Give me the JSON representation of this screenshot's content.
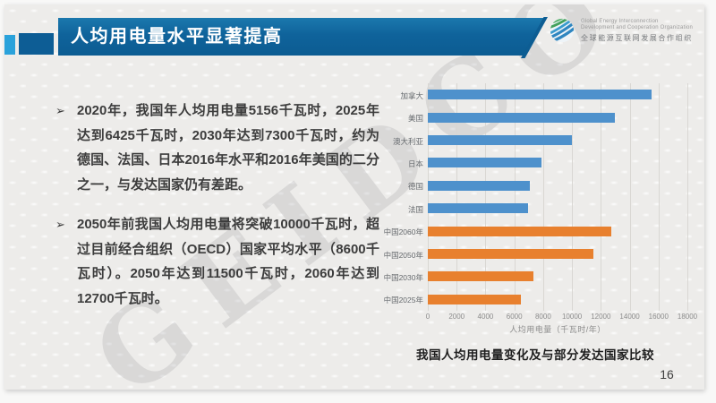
{
  "slide": {
    "header": {
      "title": "人均用电量水平显著提高"
    },
    "logo": {
      "org_en_line1": "Global Energy Interconnection",
      "org_en_line2": "Development and Cooperation Organization",
      "org_zh": "全球能源互联网发展合作组织"
    },
    "bullet_marker": "➢",
    "bullets": [
      "2020年，我国年人均用电量5156千瓦时，2025年达到6425千瓦时，2030年达到7300千瓦时，约为德国、法国、日本2016年水平和2016年美国的二分之一，与发达国家仍有差距。",
      "2050年前我国人均用电量将突破10000千瓦时，超过目前经合组织（OECD）国家平均水平（8600千瓦时）。2050年达到11500千瓦时，2060年达到12700千瓦时。"
    ],
    "watermark": "GEIDCO",
    "page_number": "16",
    "colors": {
      "banner_blue": "#0f639b",
      "deco_light_blue": "#2aa2db",
      "deco_dark_blue": "#0d5d95",
      "bar_blue": "#4e91cc",
      "bar_orange": "#e8802e"
    }
  },
  "chart_data": {
    "type": "bar",
    "orientation": "horizontal",
    "title": "我国人均用电量变化及与部分发达国家比较",
    "xlabel": "人均用电量（千瓦时/年）",
    "xlim": [
      0,
      18000
    ],
    "xticks": [
      0,
      2000,
      4000,
      6000,
      8000,
      10000,
      12000,
      14000,
      16000,
      18000
    ],
    "grid": true,
    "legend": "none",
    "categories": [
      "加拿大",
      "美国",
      "澳大利亚",
      "日本",
      "德国",
      "法国",
      "中国2060年",
      "中国2050年",
      "中国2030年",
      "中国2025年"
    ],
    "values": [
      15500,
      13000,
      10000,
      7900,
      7050,
      6950,
      12700,
      11500,
      7300,
      6425
    ],
    "bar_colors": [
      "#4e91cc",
      "#4e91cc",
      "#4e91cc",
      "#4e91cc",
      "#4e91cc",
      "#4e91cc",
      "#e8802e",
      "#e8802e",
      "#e8802e",
      "#e8802e"
    ]
  }
}
